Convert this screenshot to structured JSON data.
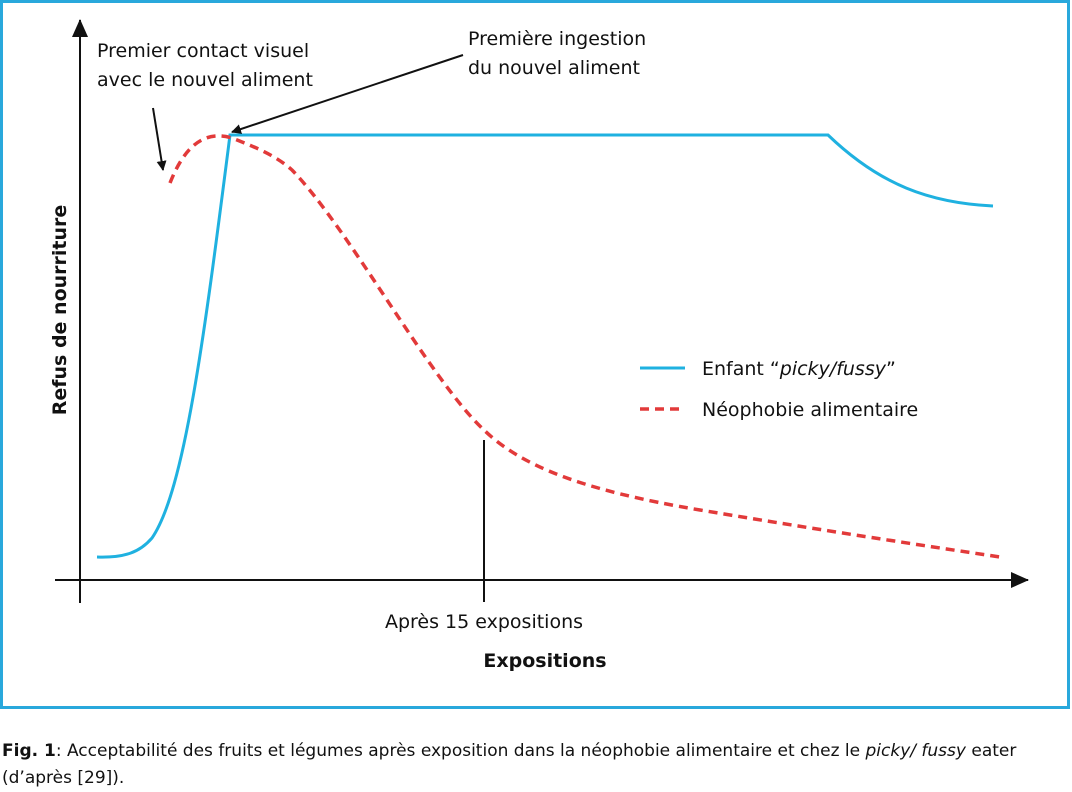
{
  "figure": {
    "y_axis_label": "Refus de nourriture",
    "x_axis_label": "Expositions",
    "marker_label": "Après 15 expositions",
    "annotations": [
      "Premier contact visuel",
      "avec le nouvel aliment",
      "Première ingestion",
      "du nouvel aliment"
    ],
    "legend": [
      {
        "parts": [
          "Enfant “",
          "picky/fussy",
          "”"
        ]
      },
      {
        "parts": [
          "Néophobie alimentaire"
        ]
      }
    ]
  },
  "caption": {
    "label": "Fig. 1",
    "parts": [
      ": Acceptabilité des fruits et légumes après exposition dans la néophobie alimentaire et chez le ",
      "picky/ fussy",
      " eater (d’après [29])."
    ]
  }
}
